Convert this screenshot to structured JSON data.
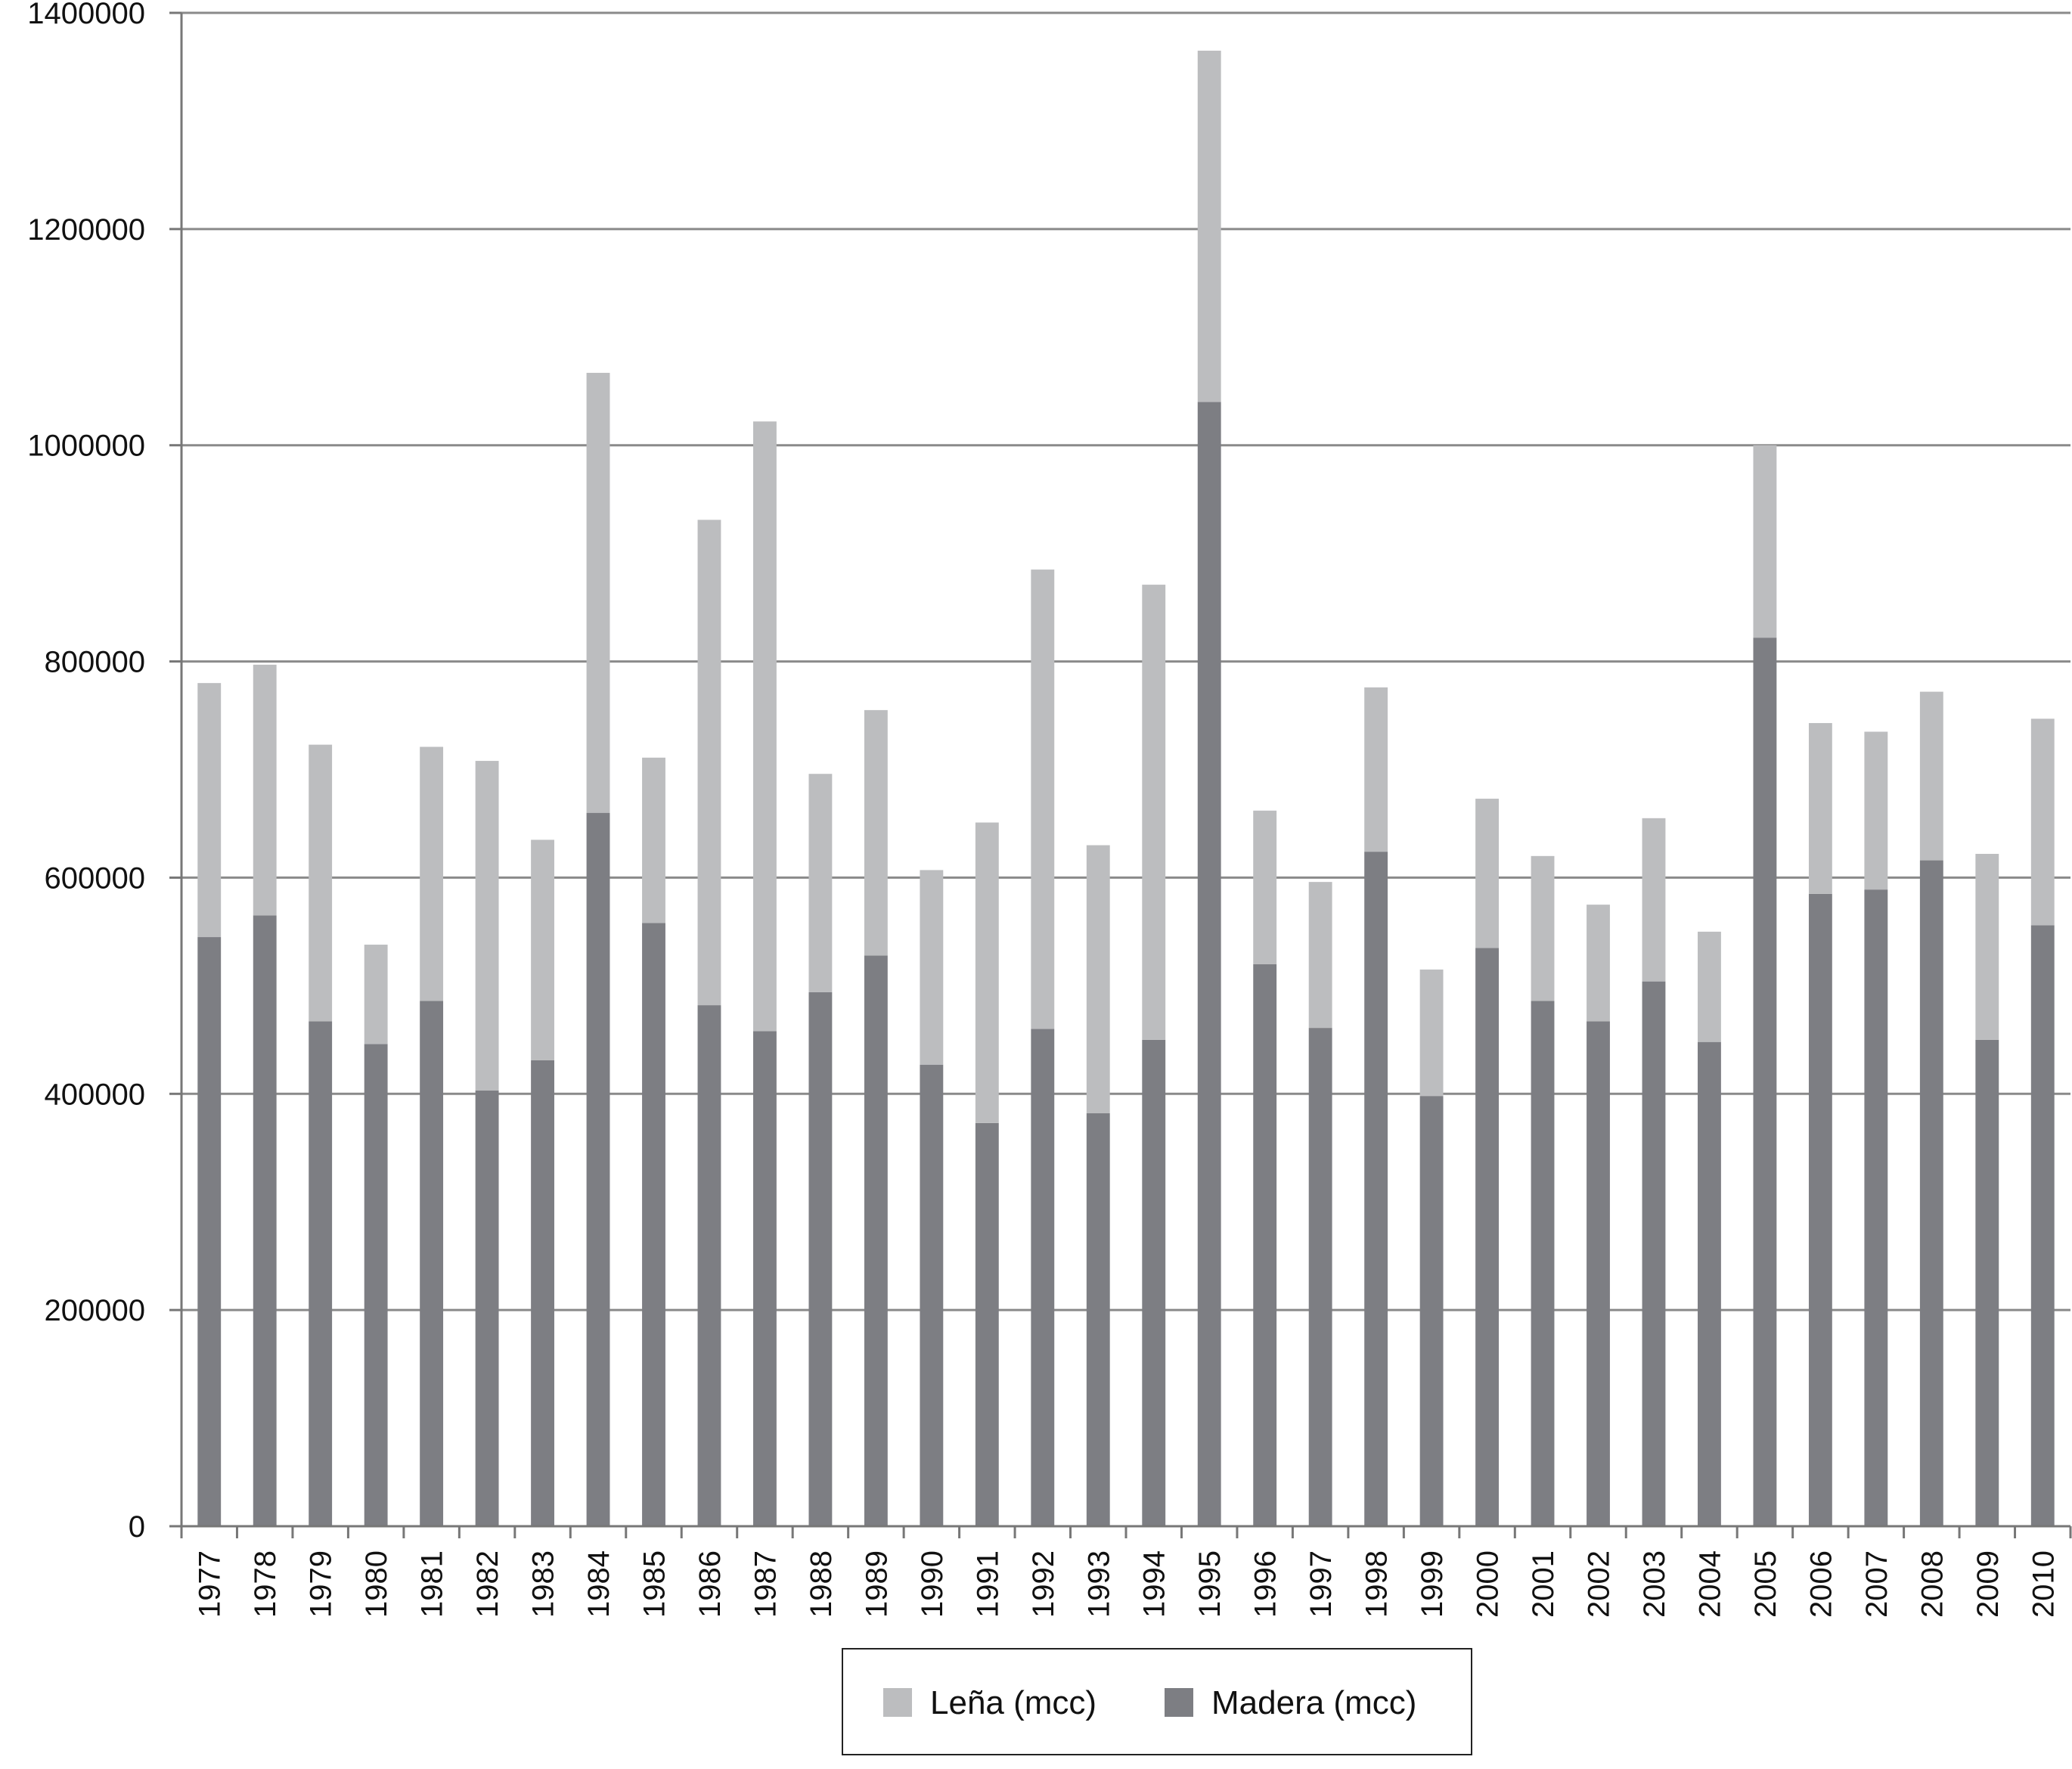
{
  "chart_data": {
    "type": "bar",
    "stacked": true,
    "title": "",
    "xlabel": "",
    "ylabel": "",
    "ylim": [
      0,
      1400000
    ],
    "yticks": [
      0,
      200000,
      400000,
      600000,
      800000,
      1000000,
      1200000,
      1400000
    ],
    "grid": true,
    "legend_position": "bottom",
    "categories": [
      "1977",
      "1978",
      "1979",
      "1980",
      "1981",
      "1982",
      "1983",
      "1984",
      "1985",
      "1986",
      "1987",
      "1988",
      "1989",
      "1990",
      "1991",
      "1992",
      "1993",
      "1994",
      "1995",
      "1996",
      "1997",
      "1998",
      "1999",
      "2000",
      "2001",
      "2002",
      "2003",
      "2004",
      "2005",
      "2006",
      "2007",
      "2008",
      "2009",
      "2010"
    ],
    "series": [
      {
        "name": "Madera (mcc)",
        "color": "#7d7e83",
        "values": [
          545000,
          565000,
          467000,
          446000,
          486000,
          403000,
          431000,
          660000,
          558000,
          482000,
          458000,
          494000,
          528000,
          427000,
          373000,
          460000,
          382000,
          450000,
          1040000,
          520000,
          461000,
          624000,
          398000,
          535000,
          486000,
          467000,
          504000,
          448000,
          822000,
          585000,
          589000,
          616000,
          450000,
          556000
        ]
      },
      {
        "name": "Leña (mcc)",
        "color": "#bcbdbf",
        "values": [
          235000,
          232000,
          256000,
          92000,
          235000,
          305000,
          204000,
          407000,
          153000,
          449000,
          564000,
          202000,
          227000,
          180000,
          278000,
          425000,
          248000,
          421000,
          325000,
          142000,
          135000,
          152000,
          117000,
          138000,
          134000,
          108000,
          151000,
          102000,
          178000,
          158000,
          146000,
          156000,
          172000,
          191000
        ]
      }
    ],
    "legend": [
      {
        "label": "Leña (mcc)",
        "color": "#bcbdbf"
      },
      {
        "label": "Madera (mcc)",
        "color": "#7d7e83"
      }
    ],
    "colors": {
      "axis": "#777777",
      "grid": "#8a8a8a"
    }
  }
}
